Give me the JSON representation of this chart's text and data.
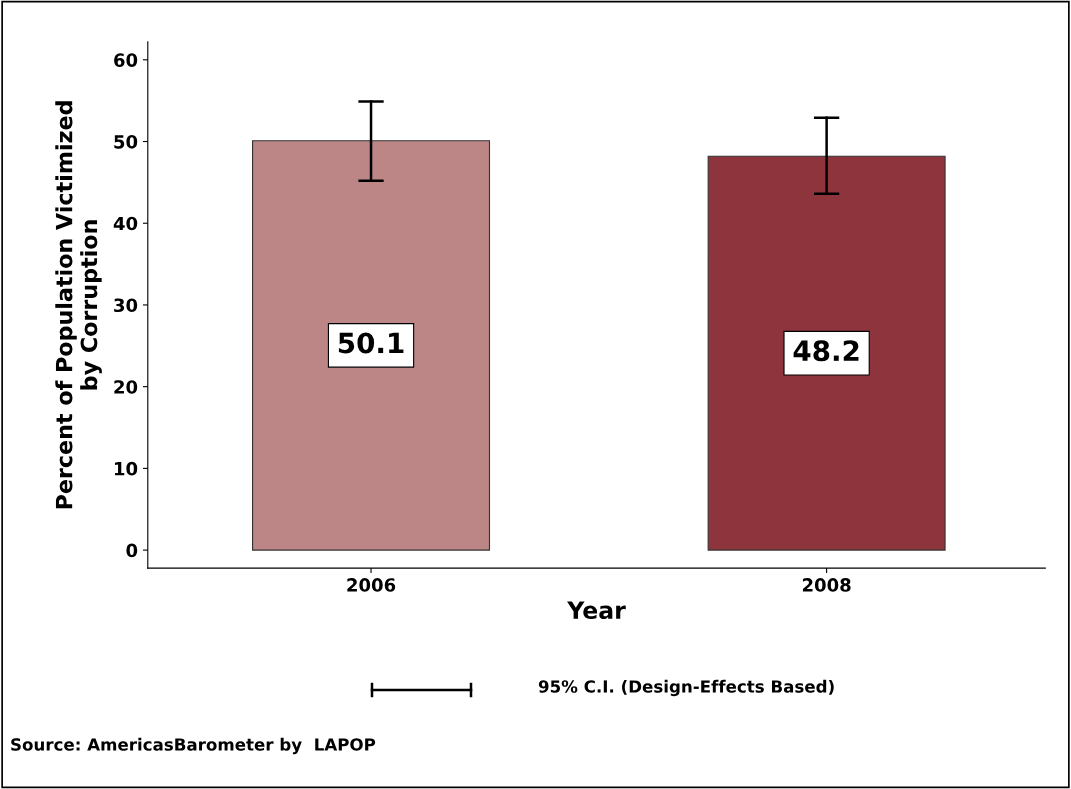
{
  "chart_data": {
    "type": "bar",
    "categories": [
      "2006",
      "2008"
    ],
    "values": [
      50.1,
      48.2
    ],
    "colors": [
      "#bc8686",
      "#8e343c"
    ],
    "errors": [
      [
        45.2,
        54.9
      ],
      [
        43.6,
        52.9
      ]
    ],
    "xlabel": "Year",
    "ylabel": "Percent of Population Victimized\nby Corruption",
    "ylim": [
      -2.2,
      62.2
    ],
    "yticks": [
      0,
      10,
      20,
      30,
      40,
      50,
      60
    ],
    "data_labels": true,
    "grid": false,
    "legend": false,
    "annotations": [
      "95% C.I. (Design-Effects Based)",
      "Source: AmericasBarometer by  LAPOP"
    ]
  }
}
